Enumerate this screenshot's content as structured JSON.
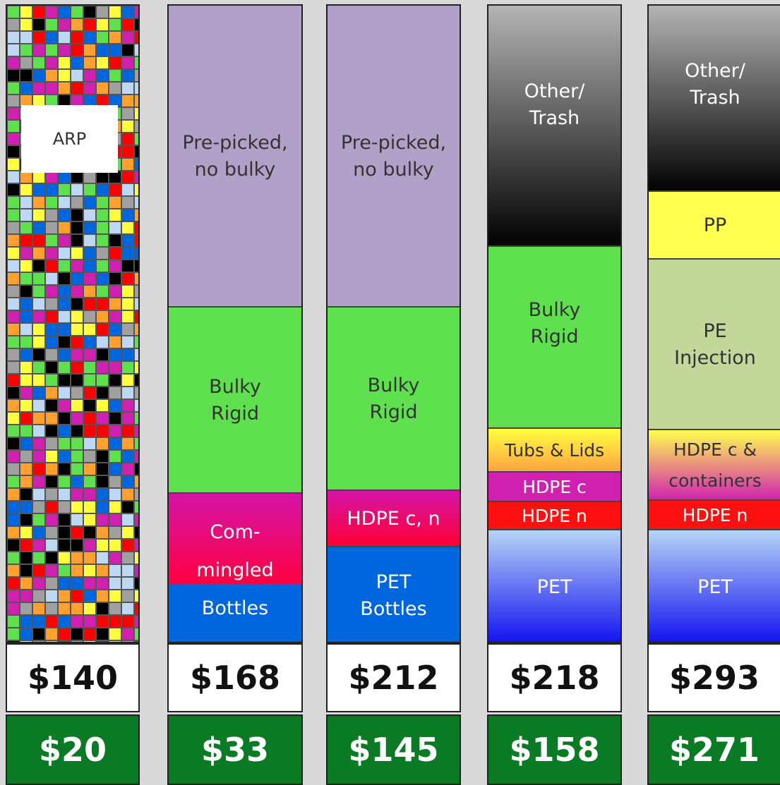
{
  "columns": [
    {
      "label": "ARP",
      "price": "$140",
      "net": "$20"
    },
    {
      "segments": [
        {
          "label": "Pre-picked,\nno bulky"
        },
        {
          "label": "Bulky\nRigid"
        },
        {
          "label": "Com-\nmingled\nBottles"
        }
      ],
      "price": "$168",
      "net": "$33"
    },
    {
      "segments": [
        {
          "label": "Pre-picked,\nno bulky"
        },
        {
          "label": "Bulky\nRigid"
        },
        {
          "label": "HDPE c, n"
        },
        {
          "label": "PET\nBottles"
        }
      ],
      "price": "$212",
      "net": "$145"
    },
    {
      "segments": [
        {
          "label": "Other/\nTrash"
        },
        {
          "label": "Bulky\nRigid"
        },
        {
          "label": "Tubs & Lids"
        },
        {
          "label": "HDPE c"
        },
        {
          "label": "HDPE n"
        },
        {
          "label": "PET"
        }
      ],
      "price": "$218",
      "net": "$158"
    },
    {
      "segments": [
        {
          "label": "Other/\nTrash"
        },
        {
          "label": "PP"
        },
        {
          "label": "PE\nInjection"
        },
        {
          "label": "HDPE c &\ncontainers"
        },
        {
          "label": "HDPE n"
        },
        {
          "label": "PET"
        }
      ],
      "price": "$293",
      "net": "$271"
    }
  ]
}
